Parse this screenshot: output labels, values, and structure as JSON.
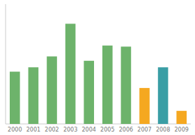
{
  "chart_data": {
    "type": "bar",
    "categories": [
      "2000",
      "2001",
      "2002",
      "2003",
      "2004",
      "2005",
      "2006",
      "2007",
      "2008",
      "2009"
    ],
    "values": [
      48,
      52,
      62,
      92,
      58,
      72,
      71,
      33,
      52,
      12
    ],
    "colors": [
      "#6db36b",
      "#6db36b",
      "#6db36b",
      "#6db36b",
      "#6db36b",
      "#6db36b",
      "#6db36b",
      "#f5a820",
      "#3a9ea5",
      "#f5a820"
    ],
    "ylim": [
      0,
      110
    ],
    "yticks": [],
    "tick_labels": "x"
  }
}
